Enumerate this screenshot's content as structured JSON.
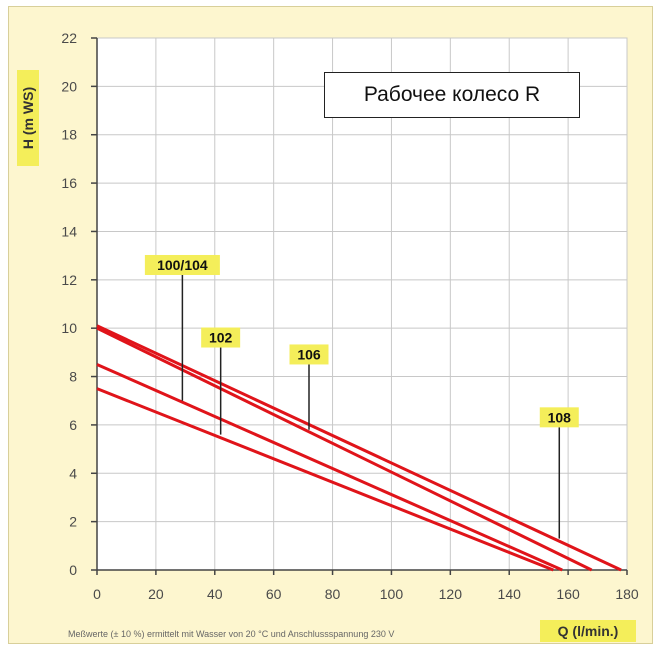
{
  "chart_data": {
    "type": "line",
    "title": "Рабочее колесо R",
    "xlabel": "Q (l/min.)",
    "ylabel": "H (m WS)",
    "footnote": "Meßwerte (± 10 %) ermittelt mit Wasser von 20 °C und Anschlussspannung 230 V",
    "xlim": [
      0,
      180
    ],
    "ylim": [
      0,
      22
    ],
    "xticks": [
      "0",
      "20",
      "40",
      "60",
      "80",
      "100",
      "120",
      "140",
      "160",
      "180"
    ],
    "yticks": [
      "0",
      "2",
      "4",
      "6",
      "8",
      "10",
      "12",
      "14",
      "16",
      "18",
      "20",
      "22"
    ],
    "grid": true,
    "series_color": "#e0141a",
    "label_bg_color": "#f4ee5a",
    "series": [
      {
        "name": "100/104",
        "label_x": 29,
        "label_y": 7,
        "points": [
          [
            0,
            10.0
          ],
          [
            168,
            0
          ]
        ]
      },
      {
        "name": "102",
        "label_x": 42,
        "label_y": 5.6,
        "points": [
          [
            0,
            7.5
          ],
          [
            155,
            0
          ]
        ]
      },
      {
        "name": "106",
        "label_x": 72,
        "label_y": 5.8,
        "points": [
          [
            0,
            10.1
          ],
          [
            178,
            0
          ]
        ]
      },
      {
        "name": "108",
        "label_x": 157,
        "label_y": 1.3,
        "points": [
          [
            0,
            8.5
          ],
          [
            158,
            0
          ]
        ]
      }
    ]
  }
}
